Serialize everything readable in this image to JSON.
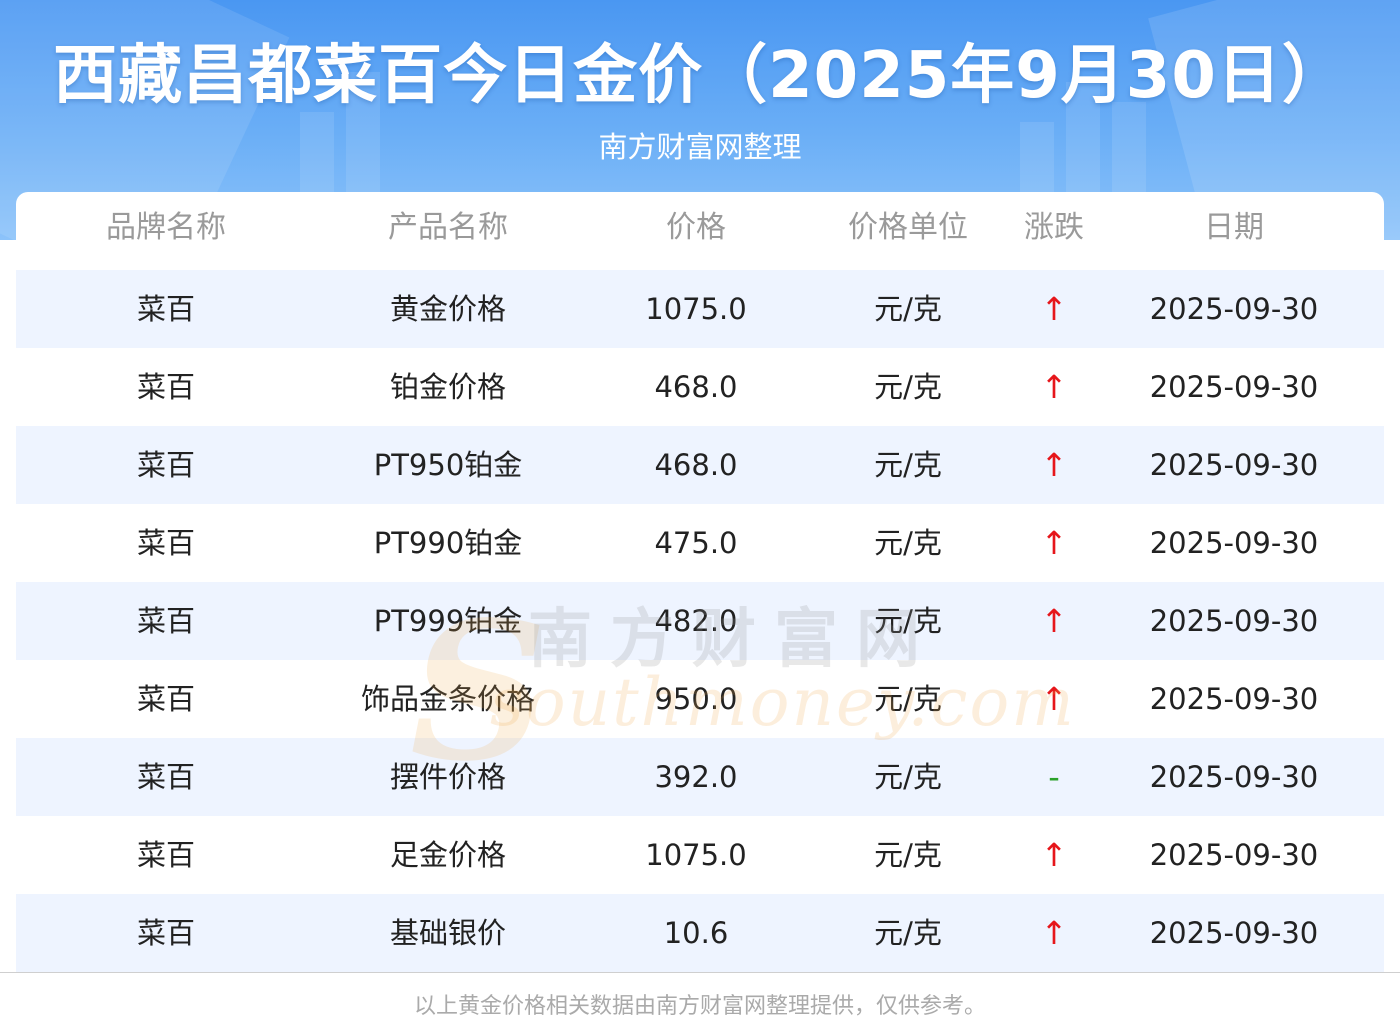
{
  "header": {
    "title": "西藏昌都菜百今日金价（2025年9月30日）",
    "subtitle": "南方财富网整理"
  },
  "table": {
    "columns": [
      "品牌名称",
      "产品名称",
      "价格",
      "价格单位",
      "涨跌",
      "日期"
    ],
    "rows": [
      {
        "brand": "菜百",
        "product": "黄金价格",
        "price": "1075.0",
        "unit": "元/克",
        "trend": "↑",
        "date": "2025-09-30"
      },
      {
        "brand": "菜百",
        "product": "铂金价格",
        "price": "468.0",
        "unit": "元/克",
        "trend": "↑",
        "date": "2025-09-30"
      },
      {
        "brand": "菜百",
        "product": "PT950铂金",
        "price": "468.0",
        "unit": "元/克",
        "trend": "↑",
        "date": "2025-09-30"
      },
      {
        "brand": "菜百",
        "product": "PT990铂金",
        "price": "475.0",
        "unit": "元/克",
        "trend": "↑",
        "date": "2025-09-30"
      },
      {
        "brand": "菜百",
        "product": "PT999铂金",
        "price": "482.0",
        "unit": "元/克",
        "trend": "↑",
        "date": "2025-09-30"
      },
      {
        "brand": "菜百",
        "product": "饰品金条价格",
        "price": "950.0",
        "unit": "元/克",
        "trend": "↑",
        "date": "2025-09-30"
      },
      {
        "brand": "菜百",
        "product": "摆件价格",
        "price": "392.0",
        "unit": "元/克",
        "trend": "-",
        "date": "2025-09-30"
      },
      {
        "brand": "菜百",
        "product": "足金价格",
        "price": "1075.0",
        "unit": "元/克",
        "trend": "↑",
        "date": "2025-09-30"
      },
      {
        "brand": "菜百",
        "product": "基础银价",
        "price": "10.6",
        "unit": "元/克",
        "trend": "↑",
        "date": "2025-09-30"
      }
    ]
  },
  "watermark": {
    "text_cn": "南方财富网",
    "text_en": "southmoney.com",
    "initial": "S"
  },
  "footer": {
    "note": "以上黄金价格相关数据由南方财富网整理提供，仅供参考。"
  },
  "colors": {
    "header_gradient_top": "#4a97f2",
    "header_gradient_bottom": "#8cc3fa",
    "row_alt_bg": "#eef4ff",
    "trend_up": "#e6161b",
    "trend_flat": "#2aa12a",
    "header_text_muted": "#9a9a9a"
  }
}
